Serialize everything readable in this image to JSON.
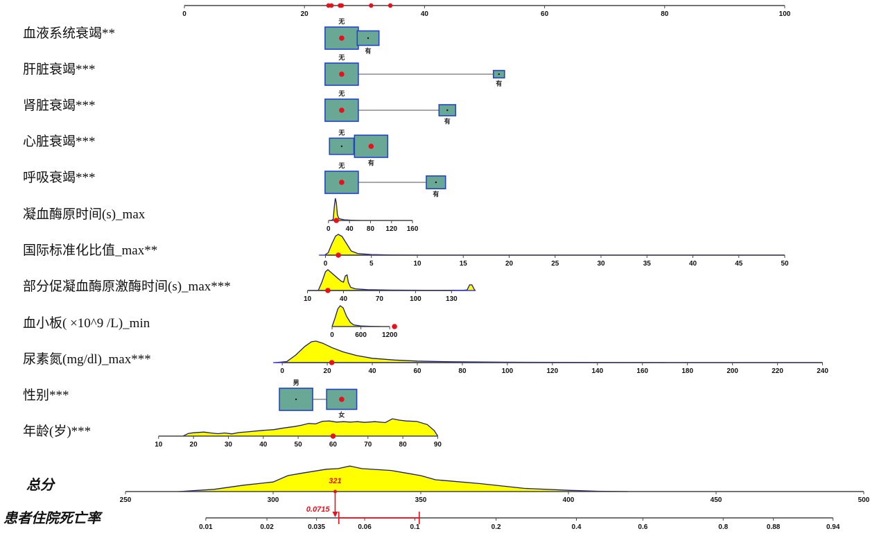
{
  "chart_data": {
    "type": "nomogram",
    "title": "",
    "colors": {
      "density_fill": "#ffff00",
      "density_line": "#1a1a80",
      "box_fill": "#6aa896",
      "box_border": "#2343c7",
      "marker": "#e8101a",
      "axis": "#444444"
    },
    "points_axis": {
      "range": [
        0,
        100
      ],
      "ticks": [
        0,
        20,
        40,
        60,
        80,
        100
      ],
      "selected_points": [
        24.0,
        24.5,
        25.9,
        26.2,
        31.1,
        34.3
      ]
    },
    "variables": [
      {
        "label": "血液系统衰竭**",
        "kind": "categorical",
        "categories": [
          {
            "name": "无",
            "points": 26.2,
            "frequency": 0.7,
            "selected": true,
            "label_pos": "above"
          },
          {
            "name": "有",
            "points": 30.6,
            "frequency": 0.3,
            "selected": false,
            "label_pos": "below"
          }
        ]
      },
      {
        "label": "肝脏衰竭***",
        "kind": "categorical",
        "categories": [
          {
            "name": "无",
            "points": 26.2,
            "frequency": 0.9,
            "selected": true,
            "label_pos": "above"
          },
          {
            "name": "有",
            "points": 52.4,
            "frequency": 0.1,
            "selected": false,
            "label_pos": "below"
          }
        ]
      },
      {
        "label": "肾脏衰竭***",
        "kind": "categorical",
        "categories": [
          {
            "name": "无",
            "points": 26.2,
            "frequency": 0.8,
            "selected": true,
            "label_pos": "above"
          },
          {
            "name": "有",
            "points": 43.8,
            "frequency": 0.2,
            "selected": false,
            "label_pos": "below"
          }
        ]
      },
      {
        "label": "心脏衰竭***",
        "kind": "categorical",
        "categories": [
          {
            "name": "无",
            "points": 26.2,
            "frequency": 0.35,
            "selected": false,
            "label_pos": "above"
          },
          {
            "name": "有",
            "points": 31.1,
            "frequency": 0.65,
            "selected": true,
            "label_pos": "below"
          }
        ]
      },
      {
        "label": "呼吸衰竭***",
        "kind": "categorical",
        "categories": [
          {
            "name": "无",
            "points": 26.2,
            "frequency": 0.75,
            "selected": true,
            "label_pos": "above"
          },
          {
            "name": "有",
            "points": 41.9,
            "frequency": 0.25,
            "selected": false,
            "label_pos": "below"
          }
        ]
      },
      {
        "label": "凝血酶原时间(s)_max",
        "kind": "continuous",
        "axis_range": [
          0,
          160
        ],
        "ticks": [
          0,
          40,
          80,
          120,
          160
        ],
        "points_at_range": [
          24.0,
          38.0
        ],
        "selected_value": 15,
        "density": [
          [
            5,
            0
          ],
          [
            9,
            0.05
          ],
          [
            11,
            0.6
          ],
          [
            13,
            1.0
          ],
          [
            15,
            0.8
          ],
          [
            17,
            0.25
          ],
          [
            20,
            0.08
          ],
          [
            30,
            0.03
          ],
          [
            45,
            0.01
          ],
          [
            60,
            0
          ]
        ]
      },
      {
        "label": "国际标准化比值_max**",
        "kind": "continuous",
        "axis_range": [
          0,
          50
        ],
        "ticks": [
          0,
          5,
          10,
          15,
          20,
          25,
          30,
          35,
          40,
          45,
          50
        ],
        "points_at_range": [
          23.5,
          100
        ],
        "extended_line": [
          -0.7,
          50
        ],
        "selected_value": 1.4,
        "density": [
          [
            -0.1,
            0
          ],
          [
            0.3,
            0.12
          ],
          [
            0.7,
            0.55
          ],
          [
            1.1,
            0.92
          ],
          [
            1.4,
            1.0
          ],
          [
            1.8,
            0.9
          ],
          [
            2.3,
            0.55
          ],
          [
            2.8,
            0.2
          ],
          [
            3.5,
            0.08
          ],
          [
            5,
            0.03
          ],
          [
            7,
            0.01
          ],
          [
            10,
            0
          ]
        ]
      },
      {
        "label": "部分促凝血酶原激酶时间(s)_max***",
        "kind": "continuous",
        "axis_range": [
          10,
          130
        ],
        "ticks": [
          10,
          40,
          70,
          100,
          130
        ],
        "points_at_range": [
          20.5,
          44.5
        ],
        "extended_line": [
          10,
          150
        ],
        "selected_value": 27,
        "density": [
          [
            19,
            0
          ],
          [
            22,
            0.4
          ],
          [
            25,
            0.9
          ],
          [
            27,
            1.0
          ],
          [
            30,
            0.85
          ],
          [
            34,
            0.65
          ],
          [
            38,
            0.45
          ],
          [
            40,
            0.4
          ],
          [
            41.5,
            0.7
          ],
          [
            43,
            0.75
          ],
          [
            44,
            0.4
          ],
          [
            46,
            0.15
          ],
          [
            50,
            0.08
          ],
          [
            60,
            0.04
          ],
          [
            80,
            0.02
          ],
          [
            110,
            0.01
          ],
          [
            140,
            0.01
          ],
          [
            143,
            0.03
          ],
          [
            145,
            0.27
          ],
          [
            147,
            0.27
          ],
          [
            149,
            0.04
          ],
          [
            150,
            0
          ]
        ]
      },
      {
        "label": "血小板( ×10^9 /L)_min",
        "kind": "continuous",
        "axis_range": [
          0,
          1200
        ],
        "ticks": [
          0,
          600,
          1200
        ],
        "points_at_range": [
          24.6,
          34.2
        ],
        "selected_value": 1300,
        "density": [
          [
            0,
            0
          ],
          [
            60,
            0.4
          ],
          [
            120,
            0.85
          ],
          [
            170,
            1.0
          ],
          [
            230,
            0.9
          ],
          [
            300,
            0.5
          ],
          [
            380,
            0.2
          ],
          [
            450,
            0.08
          ],
          [
            600,
            0.03
          ],
          [
            800,
            0.01
          ],
          [
            1000,
            0
          ]
        ]
      },
      {
        "label": "尿素氮(mg/dl)_max***",
        "kind": "continuous",
        "axis_range": [
          0,
          240
        ],
        "ticks": [
          0,
          20,
          40,
          60,
          80,
          100,
          120,
          140,
          160,
          180,
          200,
          220,
          240
        ],
        "points_at_range": [
          16.3,
          106.3
        ],
        "extended_line": [
          -4,
          240
        ],
        "selected_value": 22,
        "density": [
          [
            -3,
            0
          ],
          [
            2,
            0.05
          ],
          [
            6,
            0.35
          ],
          [
            10,
            0.75
          ],
          [
            13,
            0.97
          ],
          [
            15,
            1.0
          ],
          [
            18,
            0.9
          ],
          [
            22,
            0.7
          ],
          [
            27,
            0.5
          ],
          [
            33,
            0.33
          ],
          [
            40,
            0.2
          ],
          [
            50,
            0.12
          ],
          [
            60,
            0.07
          ],
          [
            75,
            0.04
          ],
          [
            100,
            0.02
          ],
          [
            130,
            0.01
          ],
          [
            170,
            0
          ]
        ]
      },
      {
        "label": "性别***",
        "kind": "categorical",
        "categories": [
          {
            "name": "男",
            "points": 18.6,
            "frequency": 0.55,
            "selected": false,
            "label_pos": "above"
          },
          {
            "name": "女",
            "points": 26.2,
            "frequency": 0.45,
            "selected": true,
            "label_pos": "below"
          }
        ]
      },
      {
        "label": "年龄(岁)***",
        "kind": "continuous",
        "axis_range": [
          10,
          90
        ],
        "ticks": [
          10,
          20,
          30,
          40,
          50,
          60,
          70,
          80,
          90
        ],
        "points_at_range": [
          -4.3,
          42.2
        ],
        "selected_value": 60,
        "density": [
          [
            17,
            0
          ],
          [
            18.5,
            0.12
          ],
          [
            20,
            0.15
          ],
          [
            23,
            0.18
          ],
          [
            25,
            0.14
          ],
          [
            27,
            0.11
          ],
          [
            29,
            0.14
          ],
          [
            31,
            0.1
          ],
          [
            33,
            0.16
          ],
          [
            36,
            0.2
          ],
          [
            40,
            0.26
          ],
          [
            43,
            0.29
          ],
          [
            46,
            0.37
          ],
          [
            49,
            0.43
          ],
          [
            51,
            0.49
          ],
          [
            53,
            0.57
          ],
          [
            55,
            0.55
          ],
          [
            57,
            0.67
          ],
          [
            59,
            0.68
          ],
          [
            61,
            0.63
          ],
          [
            63,
            0.65
          ],
          [
            65,
            0.63
          ],
          [
            67,
            0.65
          ],
          [
            69,
            0.62
          ],
          [
            72,
            0.65
          ],
          [
            75,
            0.61
          ],
          [
            77,
            0.78
          ],
          [
            79,
            0.72
          ],
          [
            81,
            0.68
          ],
          [
            84,
            0.66
          ],
          [
            87,
            0.52
          ],
          [
            89,
            0.25
          ],
          [
            90,
            0
          ]
        ]
      }
    ],
    "total_points": {
      "label": "总分",
      "axis_range": [
        250,
        500
      ],
      "ticks": [
        250,
        300,
        350,
        400,
        450,
        500
      ],
      "selected_value": 321,
      "selected_label": "321",
      "density": [
        [
          268,
          0
        ],
        [
          280,
          0.07
        ],
        [
          290,
          0.2
        ],
        [
          300,
          0.3
        ],
        [
          305,
          0.5
        ],
        [
          310,
          0.58
        ],
        [
          318,
          0.7
        ],
        [
          322,
          0.72
        ],
        [
          326,
          0.8
        ],
        [
          330,
          0.72
        ],
        [
          340,
          0.66
        ],
        [
          345,
          0.58
        ],
        [
          350,
          0.5
        ],
        [
          355,
          0.37
        ],
        [
          360,
          0.33
        ],
        [
          370,
          0.25
        ],
        [
          385,
          0.1
        ],
        [
          400,
          0.04
        ],
        [
          410,
          0.01
        ],
        [
          420,
          0
        ]
      ]
    },
    "risk": {
      "label": "患者住院死亡率",
      "ticks": [
        {
          "label": "0.01",
          "value": 0.01,
          "score": 277.2
        },
        {
          "label": "0.02",
          "value": 0.02,
          "score": 297.9
        },
        {
          "label": "0.035",
          "value": 0.035,
          "score": 314.7
        },
        {
          "label": "0.06",
          "value": 0.06,
          "score": 331.0
        },
        {
          "label": "0.1",
          "value": 0.1,
          "score": 348.0
        },
        {
          "label": "0.2",
          "value": 0.2,
          "score": 375.5
        },
        {
          "label": "0.4",
          "value": 0.4,
          "score": 402.7
        },
        {
          "label": "0.6",
          "value": 0.6,
          "score": 425.2
        },
        {
          "label": "0.8",
          "value": 0.8,
          "score": 452.4
        },
        {
          "label": "0.88",
          "value": 0.88,
          "score": 469.4
        },
        {
          "label": "0.94",
          "value": 0.94,
          "score": 489.6
        }
      ],
      "predicted_value": 0.0715,
      "predicted_label": "0.0715",
      "ci_lower": 0.045,
      "ci_upper": 0.104
    }
  }
}
